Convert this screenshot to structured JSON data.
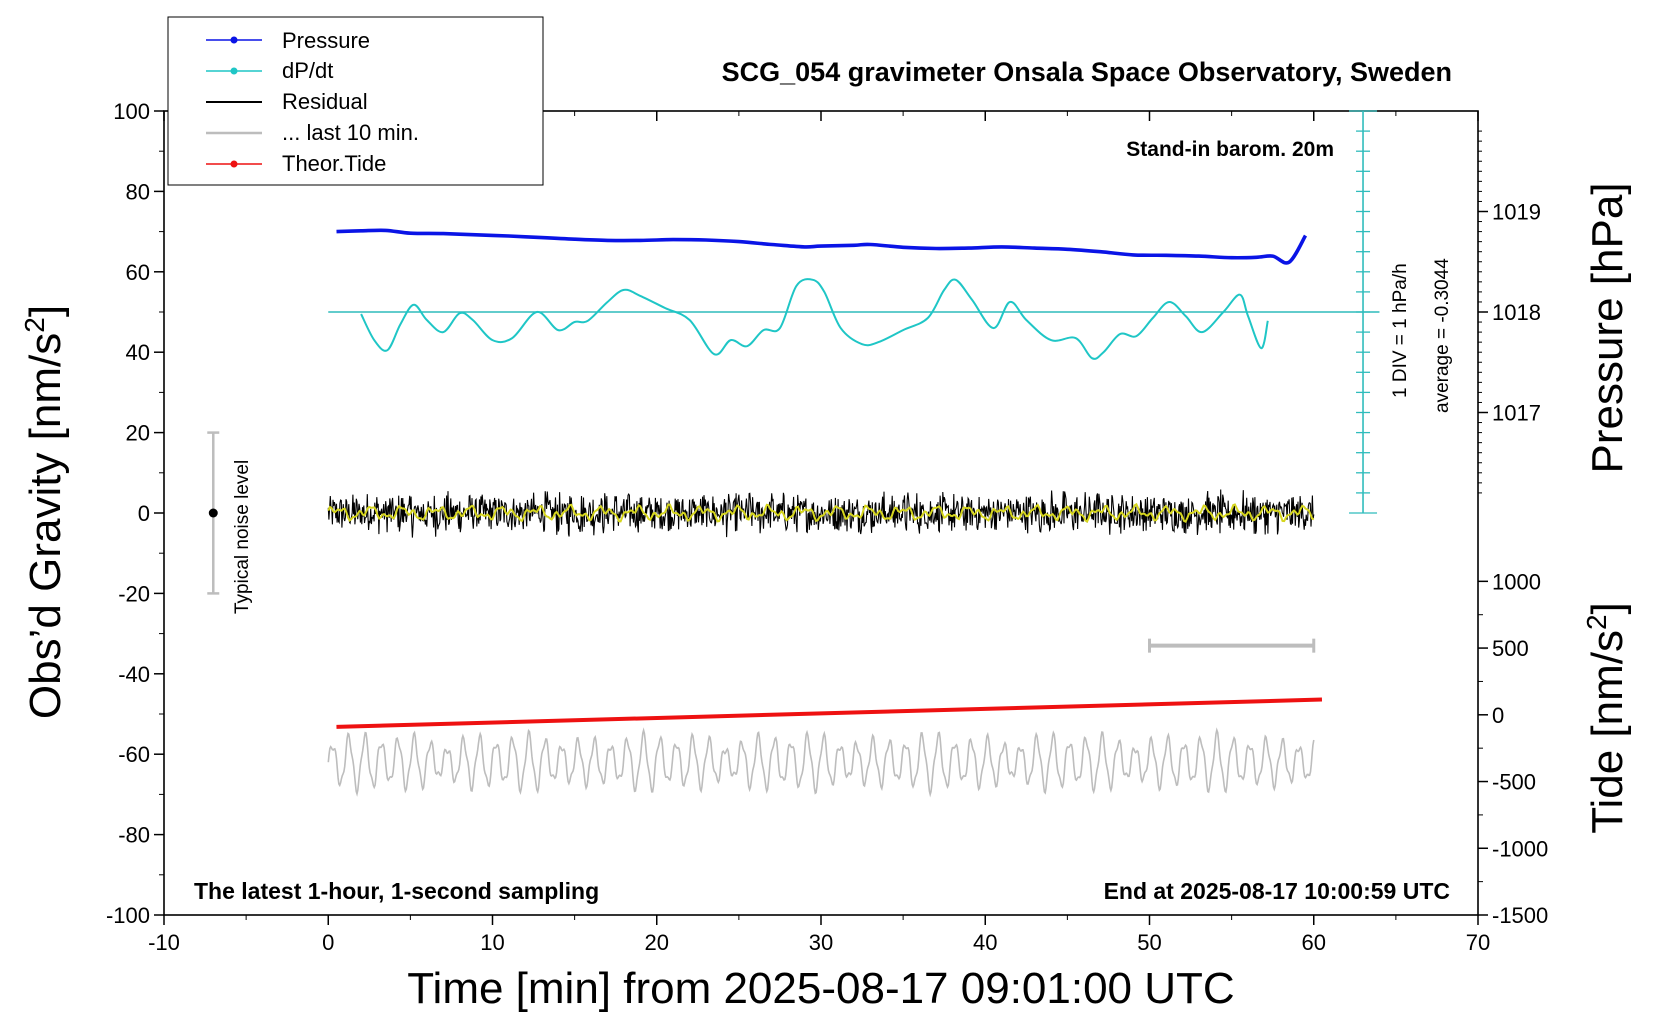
{
  "chart_data": {
    "type": "line",
    "title": "SCG_054 gravimeter Onsala Space Observatory, Sweden",
    "xlabel": "Time [min] from 2025-08-17 09:01:00 UTC",
    "ylabel_left": "Obs’d Gravity [nm/s",
    "ylabel_left_sup": "2",
    "ylabel_left_close": "]",
    "ylabel_pressure": "Pressure [hPa]",
    "ylabel_tide": "Tide [nm/s",
    "ylabel_tide_sup": "2",
    "ylabel_tide_close": "]",
    "xlim": [
      -10,
      70
    ],
    "ylim": [
      -100,
      100
    ],
    "x_ticks": [
      "-10",
      "0",
      "10",
      "20",
      "30",
      "40",
      "50",
      "60",
      "70"
    ],
    "y_ticks": [
      "100",
      "80",
      "60",
      "40",
      "20",
      "0",
      "-20",
      "-40",
      "-60",
      "-80",
      "-100"
    ],
    "pressure_ticks": [
      "1019",
      "1018",
      "1017"
    ],
    "pressure_tick_values": [
      1019,
      1018,
      1017
    ],
    "pressure_ref": {
      "hPa": 1018,
      "gravity": 50,
      "hPa_per_nm_s2": 0.04
    },
    "tide_ticks": [
      "1000",
      "500",
      "0",
      "-500",
      "-1000",
      "-1500"
    ],
    "tide_tick_values": [
      1000,
      500,
      0,
      -500,
      -1000,
      -1500
    ],
    "tide_axis": {
      "top": 1000,
      "bottom": -1500,
      "gravity_top": -17,
      "gravity_bottom": -100
    },
    "legend": {
      "pressure": "Pressure",
      "dpdt": "dP/dt",
      "residual": "Residual",
      "last10": "... last 10 min.",
      "tide": "Theor.Tide"
    },
    "annotations": {
      "stand_in": "Stand-in barom. 20m",
      "div": "1 DIV = 1 hPa/h",
      "average": "average = -0.3044",
      "noise": "Typical noise level",
      "latest": "The latest 1-hour, 1-second sampling",
      "end": "End at 2025-08-17 10:00:59 UTC"
    },
    "noise_bar": {
      "x": -7,
      "center": 0,
      "low": -20,
      "high": 20
    },
    "last10_bar": {
      "x_start": 50,
      "x_end": 60,
      "y": -33
    },
    "dpdt_axis": {
      "x": 63,
      "zero": 50,
      "bottom": 0,
      "top": 100,
      "div": 5
    },
    "colors": {
      "pressure": "#0a14e6",
      "dpdt": "#1fc6c6",
      "residual": "#000000",
      "smooth": "#d6d61e",
      "last10": "#bdbdbd",
      "tide": "#ee1111",
      "dpdt_axis": "#2fbcbc"
    },
    "series": [
      {
        "name": "Pressure",
        "x": [
          0.5,
          2,
          3.5,
          5,
          7,
          9,
          11,
          13,
          15,
          17,
          19,
          21,
          23,
          25,
          27,
          29,
          30,
          32,
          33,
          35,
          37,
          39,
          41,
          43,
          45,
          47,
          49,
          51,
          53,
          55,
          56.5,
          57.5,
          58.5,
          59.5
        ],
        "y": [
          70,
          70.2,
          70.3,
          69.6,
          69.5,
          69.2,
          68.9,
          68.5,
          68.1,
          67.8,
          67.8,
          68,
          67.9,
          67.5,
          66.8,
          66.2,
          66.4,
          66.6,
          66.8,
          66.1,
          65.8,
          65.9,
          66.2,
          65.9,
          65.6,
          65,
          64.2,
          64.1,
          63.9,
          63.5,
          63.6,
          63.9,
          62.4,
          69
        ]
      },
      {
        "name": "dP/dt",
        "x": [
          2,
          2.8,
          3.6,
          4.4,
          5.2,
          6,
          7,
          8,
          8.8,
          10,
          11.2,
          12.7,
          14,
          15,
          15.8,
          17,
          18,
          19,
          20.5,
          22,
          23.5,
          24.5,
          25.5,
          26.5,
          27.5,
          28.5,
          29.5,
          30.2,
          31.2,
          32.5,
          33.5,
          35,
          36.5,
          37.5,
          38.2,
          39.2,
          40.5,
          41.5,
          42.5,
          44,
          45.5,
          46.5,
          47.2,
          48.2,
          49.2,
          50.2,
          51.2,
          52.2,
          53.2,
          54.5,
          55.5,
          56,
          56.8,
          57.2
        ],
        "y": [
          49.5,
          43,
          40.5,
          47,
          51.8,
          48,
          45,
          49.7,
          48,
          43,
          43.5,
          50,
          45.5,
          47.5,
          47.8,
          52.5,
          55.5,
          54,
          51,
          48,
          39.5,
          43,
          41.5,
          45.5,
          46,
          56.5,
          58,
          55,
          46,
          42,
          42.5,
          45.5,
          48.5,
          55.5,
          58,
          53,
          46,
          52.5,
          48,
          43,
          43.5,
          38.5,
          40,
          44.5,
          44,
          48.5,
          52.5,
          49,
          45,
          50,
          54.3,
          49,
          41,
          47.8
        ]
      },
      {
        "name": "Theor.Tide",
        "x": [
          0.5,
          60.5
        ],
        "y": [
          -53.2,
          -46.4
        ]
      }
    ]
  }
}
